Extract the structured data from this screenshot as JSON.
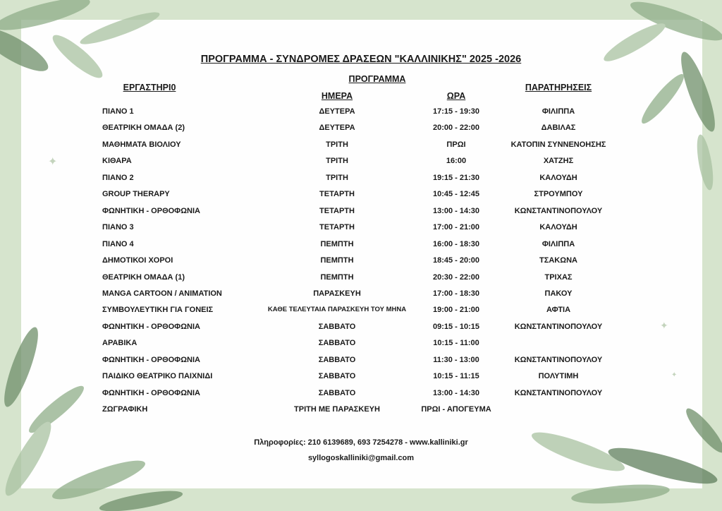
{
  "title": "ΠΡΟΓΡΑΜΜΑ - ΣΥΝΔΡΟΜΕΣ ΔΡΑΣΕΩΝ \"ΚΑΛΛΙΝΙΚΗΣ\" 2025 -2026",
  "headers": {
    "workshop": "ΕΡΓΑΣΤΗΡΙ0",
    "program": "ΠΡΟΓΡΑΜΜΑ",
    "day": "ΗΜΕΡΑ",
    "time": "ΩΡΑ",
    "notes": "ΠΑΡΑΤΗΡΗΣΕΙΣ"
  },
  "rows": [
    [
      "ΠΙΑΝΟ 1",
      "ΔΕΥΤΕΡΑ",
      "17:15 - 19:30",
      "ΦΙΛΙΠΠΑ"
    ],
    [
      "ΘΕΑΤΡΙΚΗ ΟΜΑΔΑ (2)",
      "ΔΕΥΤΕΡΑ",
      "20:00 - 22:00",
      "ΔΑΒΙΛΑΣ"
    ],
    [
      "ΜΑΘΗΜΑΤΑ ΒΙΟΛΙΟΥ",
      "ΤΡΙΤΗ",
      "ΠΡΩΙ",
      "ΚΑΤΟΠΙΝ ΣΥΝΝΕΝΟΗΣΗΣ"
    ],
    [
      "ΚΙΘΑΡΑ",
      "ΤΡΙΤΗ",
      "16:00",
      "ΧΑΤΖΗΣ"
    ],
    [
      "ΠΙΑΝΟ 2",
      "ΤΡΙΤΗ",
      "19:15 - 21:30",
      "ΚΑΛΟΥΔΗ"
    ],
    [
      "GROUP THERAPY",
      "ΤΕΤΑΡΤΗ",
      "10:45 - 12:45",
      "ΣΤΡΟΥΜΠΟΥ"
    ],
    [
      "ΦΩΝΗΤΙΚΗ - ΟΡΘΟΦΩΝΙΑ",
      "ΤΕΤΑΡΤΗ",
      "13:00 - 14:30",
      "ΚΩΝΣΤΑΝΤΙΝΟΠΟΥΛΟΥ"
    ],
    [
      "ΠΙΑΝΟ 3",
      "ΤΕΤΑΡΤΗ",
      "17:00 - 21:00",
      "ΚΑΛΟΥΔΗ"
    ],
    [
      "ΠΙΑΝΟ 4",
      "ΠΕΜΠΤΗ",
      "16:00 - 18:30",
      "ΦΙΛΙΠΠΑ"
    ],
    [
      "ΔΗΜΟΤΙΚΟΙ ΧΟΡΟΙ",
      "ΠΕΜΠΤΗ",
      "18:45 - 20:00",
      "ΤΣΑΚΩΝΑ"
    ],
    [
      "ΘΕΑΤΡΙΚΗ ΟΜΑΔΑ (1)",
      "ΠΕΜΠΤΗ",
      "20:30 - 22:00",
      "ΤΡΙΧΑΣ"
    ],
    [
      "MANGA CARTOON / ANIMATION",
      "ΠΑΡΑΣΚΕΥΗ",
      "17:00 - 18:30",
      "ΠΑΚΟΥ"
    ],
    [
      "ΣΥΜΒΟΥΛΕΥΤΙΚΗ ΓΙΑ ΓΟΝΕΙΣ",
      "ΚΑΘΕ ΤΕΛΕΥΤΑΙΑ ΠΑΡΑΣΚΕΥΗ ΤΟΥ ΜΗΝΑ",
      "19:00 - 21:00",
      "ΑΦΤΙΑ"
    ],
    [
      "ΦΩΝΗΤΙΚΗ - ΟΡΘΟΦΩΝΙΑ",
      "ΣΑΒΒΑΤΟ",
      "09:15 - 10:15",
      "ΚΩΝΣΤΑΝΤΙΝΟΠΟΥΛΟΥ"
    ],
    [
      "ΑΡΑΒΙΚΑ",
      "ΣΑΒΒΑΤΟ",
      "10:15 - 11:00",
      ""
    ],
    [
      "ΦΩΝΗΤΙΚΗ - ΟΡΘΟΦΩΝΙΑ",
      "ΣΑΒΒΑΤΟ",
      "11:30 - 13:00",
      "ΚΩΝΣΤΑΝΤΙΝΟΠΟΥΛΟΥ"
    ],
    [
      "ΠΑΙΔΙΚΟ ΘΕΑΤΡΙΚΟ ΠΑΙΧΝΙΔΙ",
      "ΣΑΒΒΑΤΟ",
      "10:15 - 11:15",
      "ΠΟΛΥΤΙΜΗ"
    ],
    [
      "ΦΩΝΗΤΙΚΗ - ΟΡΘΟΦΩΝΙΑ",
      "ΣΑΒΒΑΤΟ",
      "13:00 - 14:30",
      "ΚΩΝΣΤΑΝΤΙΝΟΠΟΥΛΟΥ"
    ],
    [
      "ΖΩΓΡΑΦΙΚΗ",
      "ΤΡΙΤΗ ΜΕ ΠΑΡΑΣΚΕΥΗ",
      "ΠΡΩΙ - ΑΠΟΓΕΥΜΑ",
      ""
    ]
  ],
  "footer": {
    "info": "Πληροφορίες: 210 6139689, 693 7254278 - www.kalliniki.gr",
    "email": "syllogoskalliniki@gmail.com"
  },
  "colors": {
    "border": "#d6e4cd",
    "leaf": "#8fae88",
    "leaf_dark": "#5f7f5c"
  }
}
